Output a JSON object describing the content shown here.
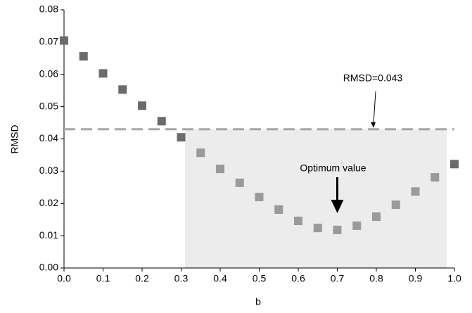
{
  "chart_data": {
    "type": "scatter",
    "xlabel": "b",
    "ylabel": "RMSD",
    "xlim": [
      0,
      1
    ],
    "ylim": [
      0,
      0.08
    ],
    "xticks": [
      {
        "value": 0,
        "label": "0.0"
      },
      0.1,
      0.2,
      0.3,
      0.4,
      0.5,
      0.6,
      0.7,
      0.8,
      0.9,
      {
        "value": 1,
        "label": "1.0"
      }
    ],
    "yticks": [
      {
        "value": 0,
        "label": "0.00"
      },
      0.01,
      0.02,
      0.03,
      0.04,
      0.05,
      0.06,
      0.07,
      0.08
    ],
    "series": [
      {
        "color": "#6b6b6b",
        "x": [
          0,
          0.05,
          0.1,
          0.15,
          0.2,
          0.25,
          0.3,
          1
        ],
        "values": [
          0.0705,
          0.0656,
          0.0603,
          0.0553,
          0.0503,
          0.0455,
          0.0405,
          0.0322
        ]
      },
      {
        "color": "#9a9a9a",
        "x": [
          0.35,
          0.4,
          0.45,
          0.5,
          0.55,
          0.6,
          0.65,
          0.7,
          0.75,
          0.8,
          0.85,
          0.9,
          0.95
        ],
        "values": [
          0.0357,
          0.0307,
          0.0264,
          0.022,
          0.0181,
          0.0146,
          0.0124,
          0.0118,
          0.0131,
          0.0159,
          0.0196,
          0.0237,
          0.0281
        ]
      }
    ],
    "reference_line": {
      "value": 0.043,
      "color": "#a6a6a6",
      "label": "RMSD=0.043"
    },
    "shaded_region": {
      "x": [
        0.31,
        0.98
      ],
      "y": [
        0,
        0.043
      ],
      "color": "#ececec"
    },
    "annotation": {
      "text": "Optimum value",
      "x": 0.7
    }
  }
}
